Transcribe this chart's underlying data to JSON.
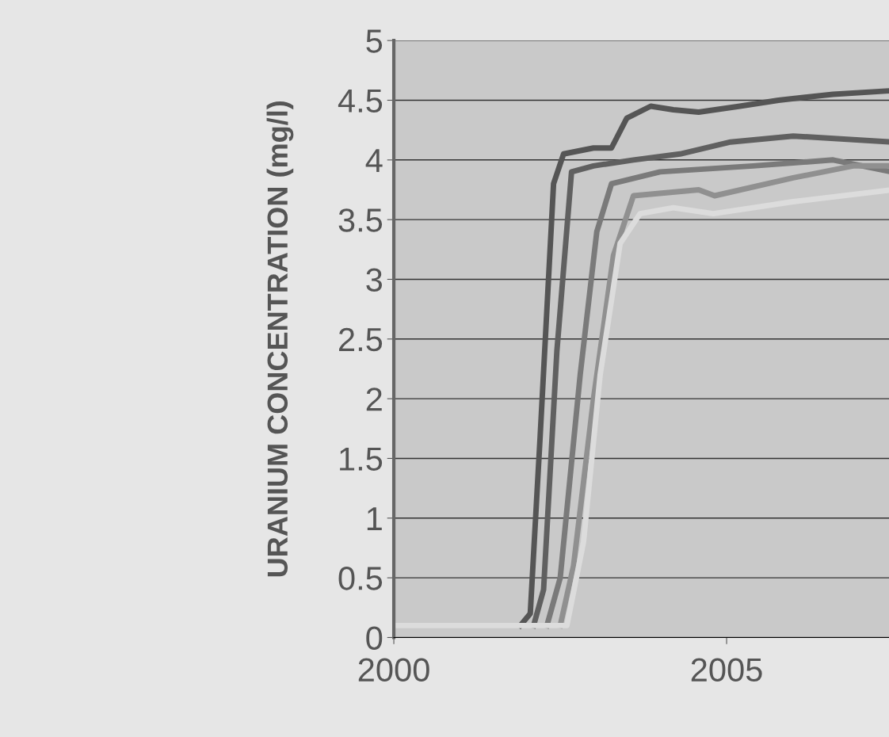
{
  "chart_data": {
    "type": "line",
    "ylabel": "URANIUM CONCENTRATION (mg/l)",
    "xlim": [
      2000,
      2007.48
    ],
    "xticks": [
      2000,
      2005
    ],
    "ylim": [
      0,
      5
    ],
    "yticks": [
      0,
      0.5,
      1,
      1.5,
      2,
      2.5,
      3,
      3.5,
      4,
      4.5,
      5
    ],
    "grid": "y",
    "legend": false,
    "marker": "none",
    "line_style": "solid",
    "series": [
      {
        "color": "#555555",
        "x": [
          2001.9,
          2002.05,
          2002.2,
          2002.4,
          2002.55,
          2003.0,
          2003.27,
          2003.5,
          2003.86,
          2004.2,
          2004.58,
          2005.2,
          2005.78,
          2006.6,
          2007.48
        ],
        "values": [
          0.1,
          0.2,
          1.7,
          3.8,
          4.05,
          4.1,
          4.1,
          4.35,
          4.45,
          4.42,
          4.4,
          4.45,
          4.5,
          4.55,
          4.58
        ]
      },
      {
        "color": "#606060",
        "x": [
          2002.1,
          2002.25,
          2002.45,
          2002.67,
          2003.0,
          2003.6,
          2004.3,
          2005.06,
          2006.0,
          2007.48
        ],
        "values": [
          0.1,
          0.4,
          2.4,
          3.9,
          3.95,
          4.0,
          4.05,
          4.15,
          4.2,
          4.15
        ]
      },
      {
        "color": "#7a7a7a",
        "x": [
          2002.3,
          2002.5,
          2002.8,
          2003.05,
          2003.27,
          2004.0,
          2005.4,
          2006.6,
          2007.48
        ],
        "values": [
          0.1,
          0.5,
          2.2,
          3.4,
          3.8,
          3.9,
          3.95,
          4.0,
          3.9
        ]
      },
      {
        "color": "#909090",
        "x": [
          2002.5,
          2002.7,
          2003.0,
          2003.3,
          2003.6,
          2004.58,
          2004.82,
          2006.0,
          2006.9,
          2007.48
        ],
        "values": [
          0.1,
          0.6,
          2.0,
          3.2,
          3.7,
          3.75,
          3.7,
          3.85,
          3.95,
          3.95
        ]
      },
      {
        "color": "#dcdcdc",
        "x": [
          2000,
          2002.6,
          2002.85,
          2003.1,
          2003.4,
          2003.7,
          2004.2,
          2004.8,
          2006.0,
          2007.48
        ],
        "values": [
          0.1,
          0.1,
          0.8,
          2.2,
          3.3,
          3.55,
          3.6,
          3.55,
          3.65,
          3.75
        ]
      }
    ]
  }
}
